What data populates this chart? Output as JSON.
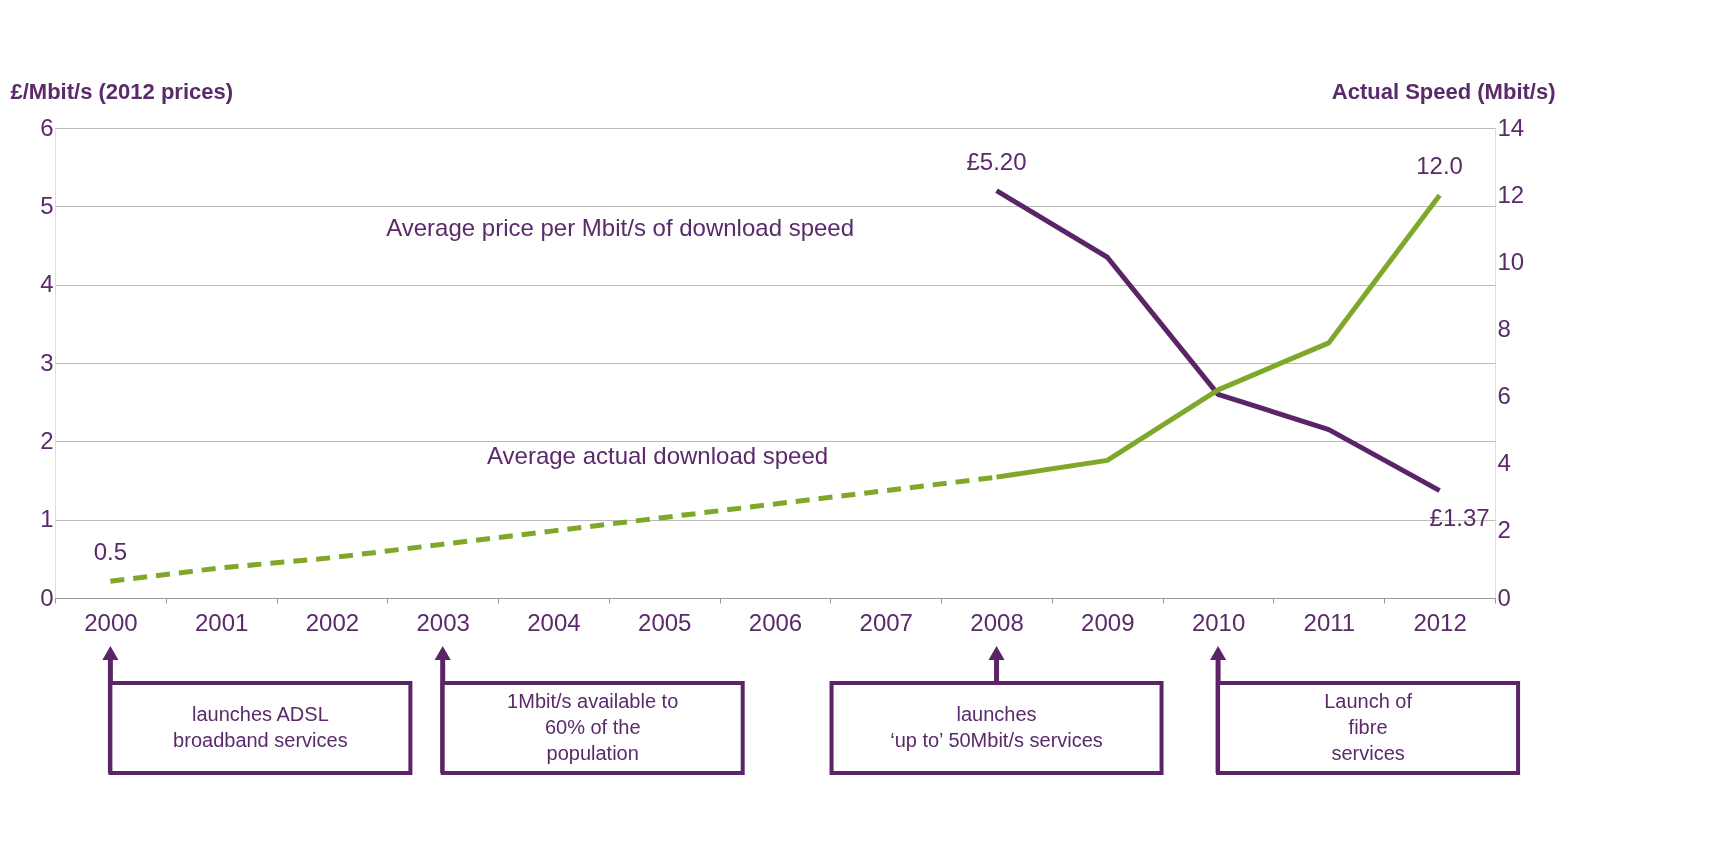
{
  "chart_data": {
    "type": "line",
    "ylabel": "£/Mbit/s (2012 prices)",
    "y2label": "Actual Speed (Mbit/s)",
    "categories": [
      "2000",
      "2001",
      "2002",
      "2003",
      "2004",
      "2005",
      "2006",
      "2007",
      "2008",
      "2009",
      "2010",
      "2011",
      "2012"
    ],
    "series": [
      {
        "color": "#5b2466",
        "line_style": "solid",
        "values": [
          null,
          null,
          null,
          null,
          null,
          null,
          null,
          null,
          5.2,
          4.35,
          2.6,
          2.15,
          1.37
        ],
        "value_labels": [
          null,
          null,
          null,
          null,
          null,
          null,
          null,
          null,
          "£5.20",
          null,
          null,
          null,
          "£1.37"
        ]
      },
      {
        "color": "#7fa82a",
        "line_style": "dashed",
        "axis": "y2",
        "values": [
          0.5,
          0.9,
          1.2,
          1.6,
          2.0,
          2.4,
          2.8,
          3.2,
          3.6,
          null,
          null,
          null,
          null
        ],
        "value_labels": [
          "0.5",
          null,
          null,
          null,
          null,
          null,
          null,
          null,
          null,
          null,
          null,
          null,
          null
        ]
      },
      {
        "color": "#7fa82a",
        "line_style": "solid",
        "axis": "y2",
        "values": [
          null,
          null,
          null,
          null,
          null,
          null,
          null,
          null,
          3.6,
          4.1,
          6.2,
          7.6,
          12.0
        ],
        "value_labels": [
          null,
          null,
          null,
          null,
          null,
          null,
          null,
          null,
          null,
          null,
          null,
          null,
          "12.0"
        ]
      }
    ],
    "ylim": [
      0,
      6
    ],
    "yticks": [
      0,
      1,
      2,
      3,
      4,
      5,
      6
    ],
    "y2lim": [
      0,
      14
    ],
    "y2ticks": [
      0,
      2,
      4,
      6,
      8,
      10,
      12,
      14
    ],
    "grid": "y",
    "annotations": [
      "Average price per Mbit/s of download speed",
      "Average actual download speed",
      "launches ADSL\nbroadband services",
      "1Mbit/s available to\n60% of the\npopulation",
      "launches\n‘up to’ 50Mbit/s services",
      "Launch of\nfibre\nservices"
    ]
  }
}
